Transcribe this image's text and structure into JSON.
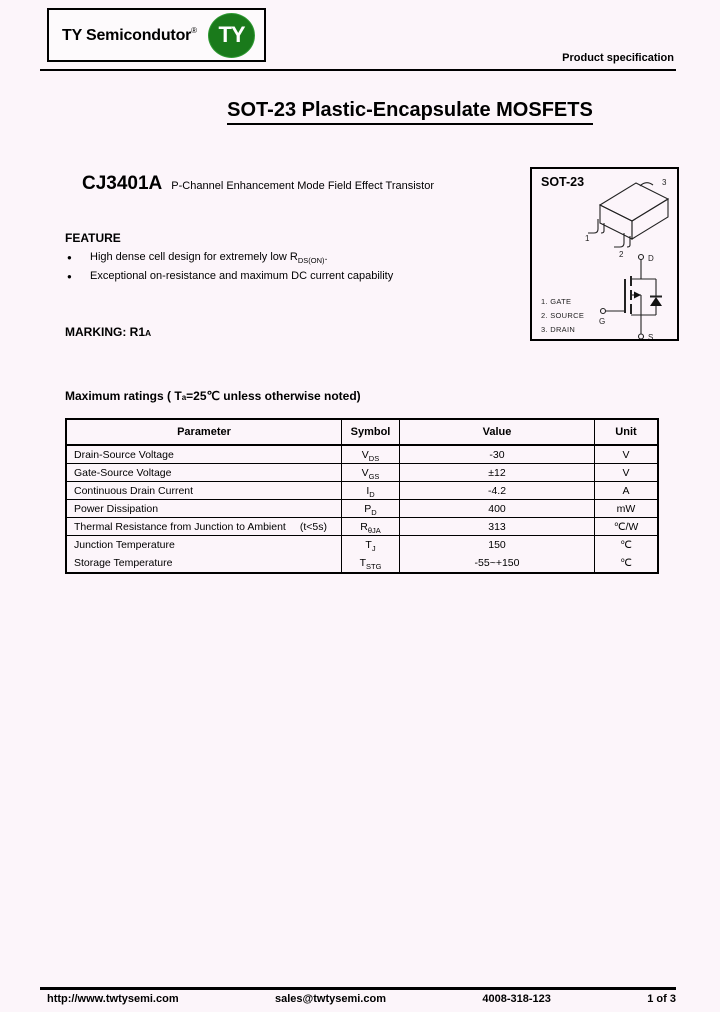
{
  "header": {
    "logo": {
      "text": "TY Semicondutor",
      "reg": "®",
      "badge": "TY"
    },
    "spec_label": "Product specification"
  },
  "title": "SOT-23 Plastic-Encapsulate MOSFETS",
  "part": {
    "number": "CJ3401A",
    "description": "P-Channel Enhancement Mode Field Effect Transistor"
  },
  "feature": {
    "heading": "FEATURE",
    "bullet_glyph": "●",
    "items": [
      {
        "pre": "High dense cell design for extremely low R",
        "sub": "DS(ON)",
        "post": "."
      },
      {
        "pre": "Exceptional on-resistance and maximum DC current capability",
        "sub": "",
        "post": ""
      }
    ]
  },
  "marking": {
    "text": "MARKING: R1",
    "sub": "A"
  },
  "package_box": {
    "title": "SOT-23",
    "pin_legend": [
      "1. GATE",
      "2. SOURCE",
      "3. DRAIN"
    ],
    "pin_numbers": {
      "p1": "1",
      "p2": "2",
      "p3": "3"
    },
    "schematic": {
      "drain": "D",
      "gate": "G",
      "source": "S"
    }
  },
  "ratings": {
    "heading": {
      "pre": "Maximum ratings ( T",
      "sub": "a",
      "post": "=25℃ unless otherwise noted)"
    },
    "columns": [
      "Parameter",
      "Symbol",
      "Value",
      "Unit"
    ],
    "rows": [
      {
        "parameter": "Drain-Source Voltage",
        "note": "",
        "symbol": "V",
        "symbol_sub": "DS",
        "value": "-30",
        "unit": "V"
      },
      {
        "parameter": "Gate-Source Voltage",
        "note": "",
        "symbol": "V",
        "symbol_sub": "GS",
        "value": "±12",
        "unit": "V"
      },
      {
        "parameter": "Continuous Drain Current",
        "note": "",
        "symbol": "I",
        "symbol_sub": "D",
        "value": "-4.2",
        "unit": "A"
      },
      {
        "parameter": "Power Dissipation",
        "note": "",
        "symbol": "P",
        "symbol_sub": "D",
        "value": "400",
        "unit": "mW"
      },
      {
        "parameter": "Thermal Resistance from Junction to Ambient",
        "note": "(t<5s)",
        "symbol": "R",
        "symbol_sub": "θJA",
        "value": "313",
        "unit": "℃/W"
      },
      {
        "parameter": "Junction Temperature",
        "note": "",
        "symbol": "T",
        "symbol_sub": "J",
        "value": "150",
        "unit": "℃"
      },
      {
        "parameter": "Storage Temperature",
        "note": "",
        "symbol": "T",
        "symbol_sub": "STG",
        "value": "-55~+150",
        "unit": "℃"
      }
    ]
  },
  "footer": {
    "website": "http://www.twtysemi.com",
    "email": "sales@twtysemi.com",
    "phone": "4008-318-123",
    "page": "1 of 3"
  },
  "colors": {
    "logo_green": "#1a7a1b",
    "page_bg": "#fcf5fa"
  }
}
